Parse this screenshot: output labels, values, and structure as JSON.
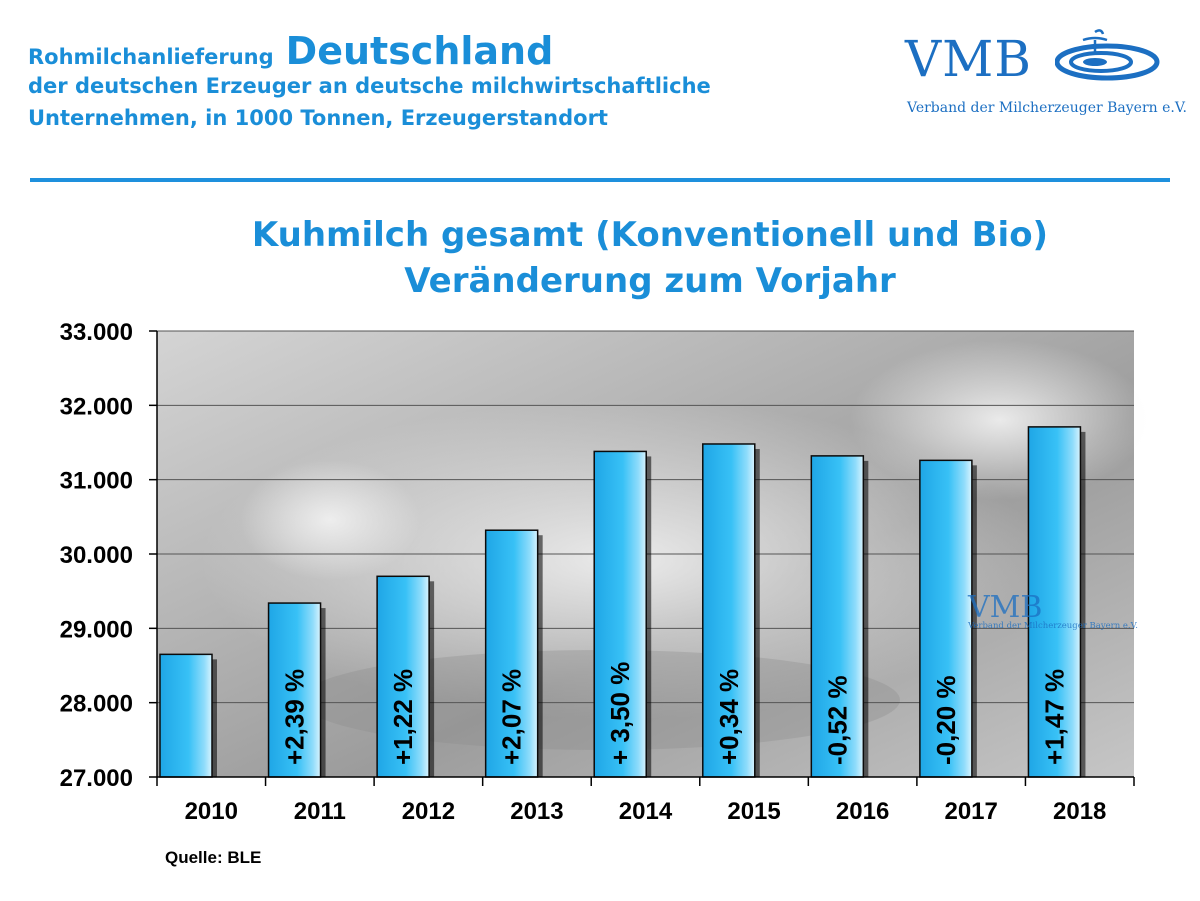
{
  "header": {
    "line1_small": "Rohmilchanlieferung",
    "line1_big": "Deutschland",
    "line2": "der deutschen Erzeuger an deutsche milchwirtschaftliche",
    "line3": "Unternehmen, in 1000 Tonnen, Erzeugerstandort"
  },
  "logo": {
    "letters": "VMB",
    "subtitle": "Verband der Milcherzeuger Bayern e.V."
  },
  "source": "Quelle: BLE",
  "colors": {
    "accent": "#1a8ed8",
    "bar": "#29b6f0"
  },
  "chart_data": {
    "type": "bar",
    "title_line1": "Kuhmilch gesamt (Konventionell und Bio)",
    "title_line2": "Veränderung zum Vorjahr",
    "xlabel": "",
    "ylabel": "",
    "categories": [
      "2010",
      "2011",
      "2012",
      "2013",
      "2014",
      "2015",
      "2016",
      "2017",
      "2018"
    ],
    "values": [
      28650,
      29340,
      29700,
      30320,
      31380,
      31480,
      31320,
      31260,
      31710
    ],
    "labels": [
      "",
      "+2,39 %",
      "+1,22 %",
      "+2,07 %",
      "+ 3,50 %",
      "+0,34 %",
      "-0,52 %",
      "-0,20 %",
      "+1,47 %"
    ],
    "ylim": [
      27000,
      33000
    ],
    "yticks": [
      27000,
      28000,
      29000,
      30000,
      31000,
      32000,
      33000
    ],
    "ytick_labels": [
      "27.000",
      "28.000",
      "29.000",
      "30.000",
      "31.000",
      "32.000",
      "33.000"
    ],
    "grid": true
  }
}
